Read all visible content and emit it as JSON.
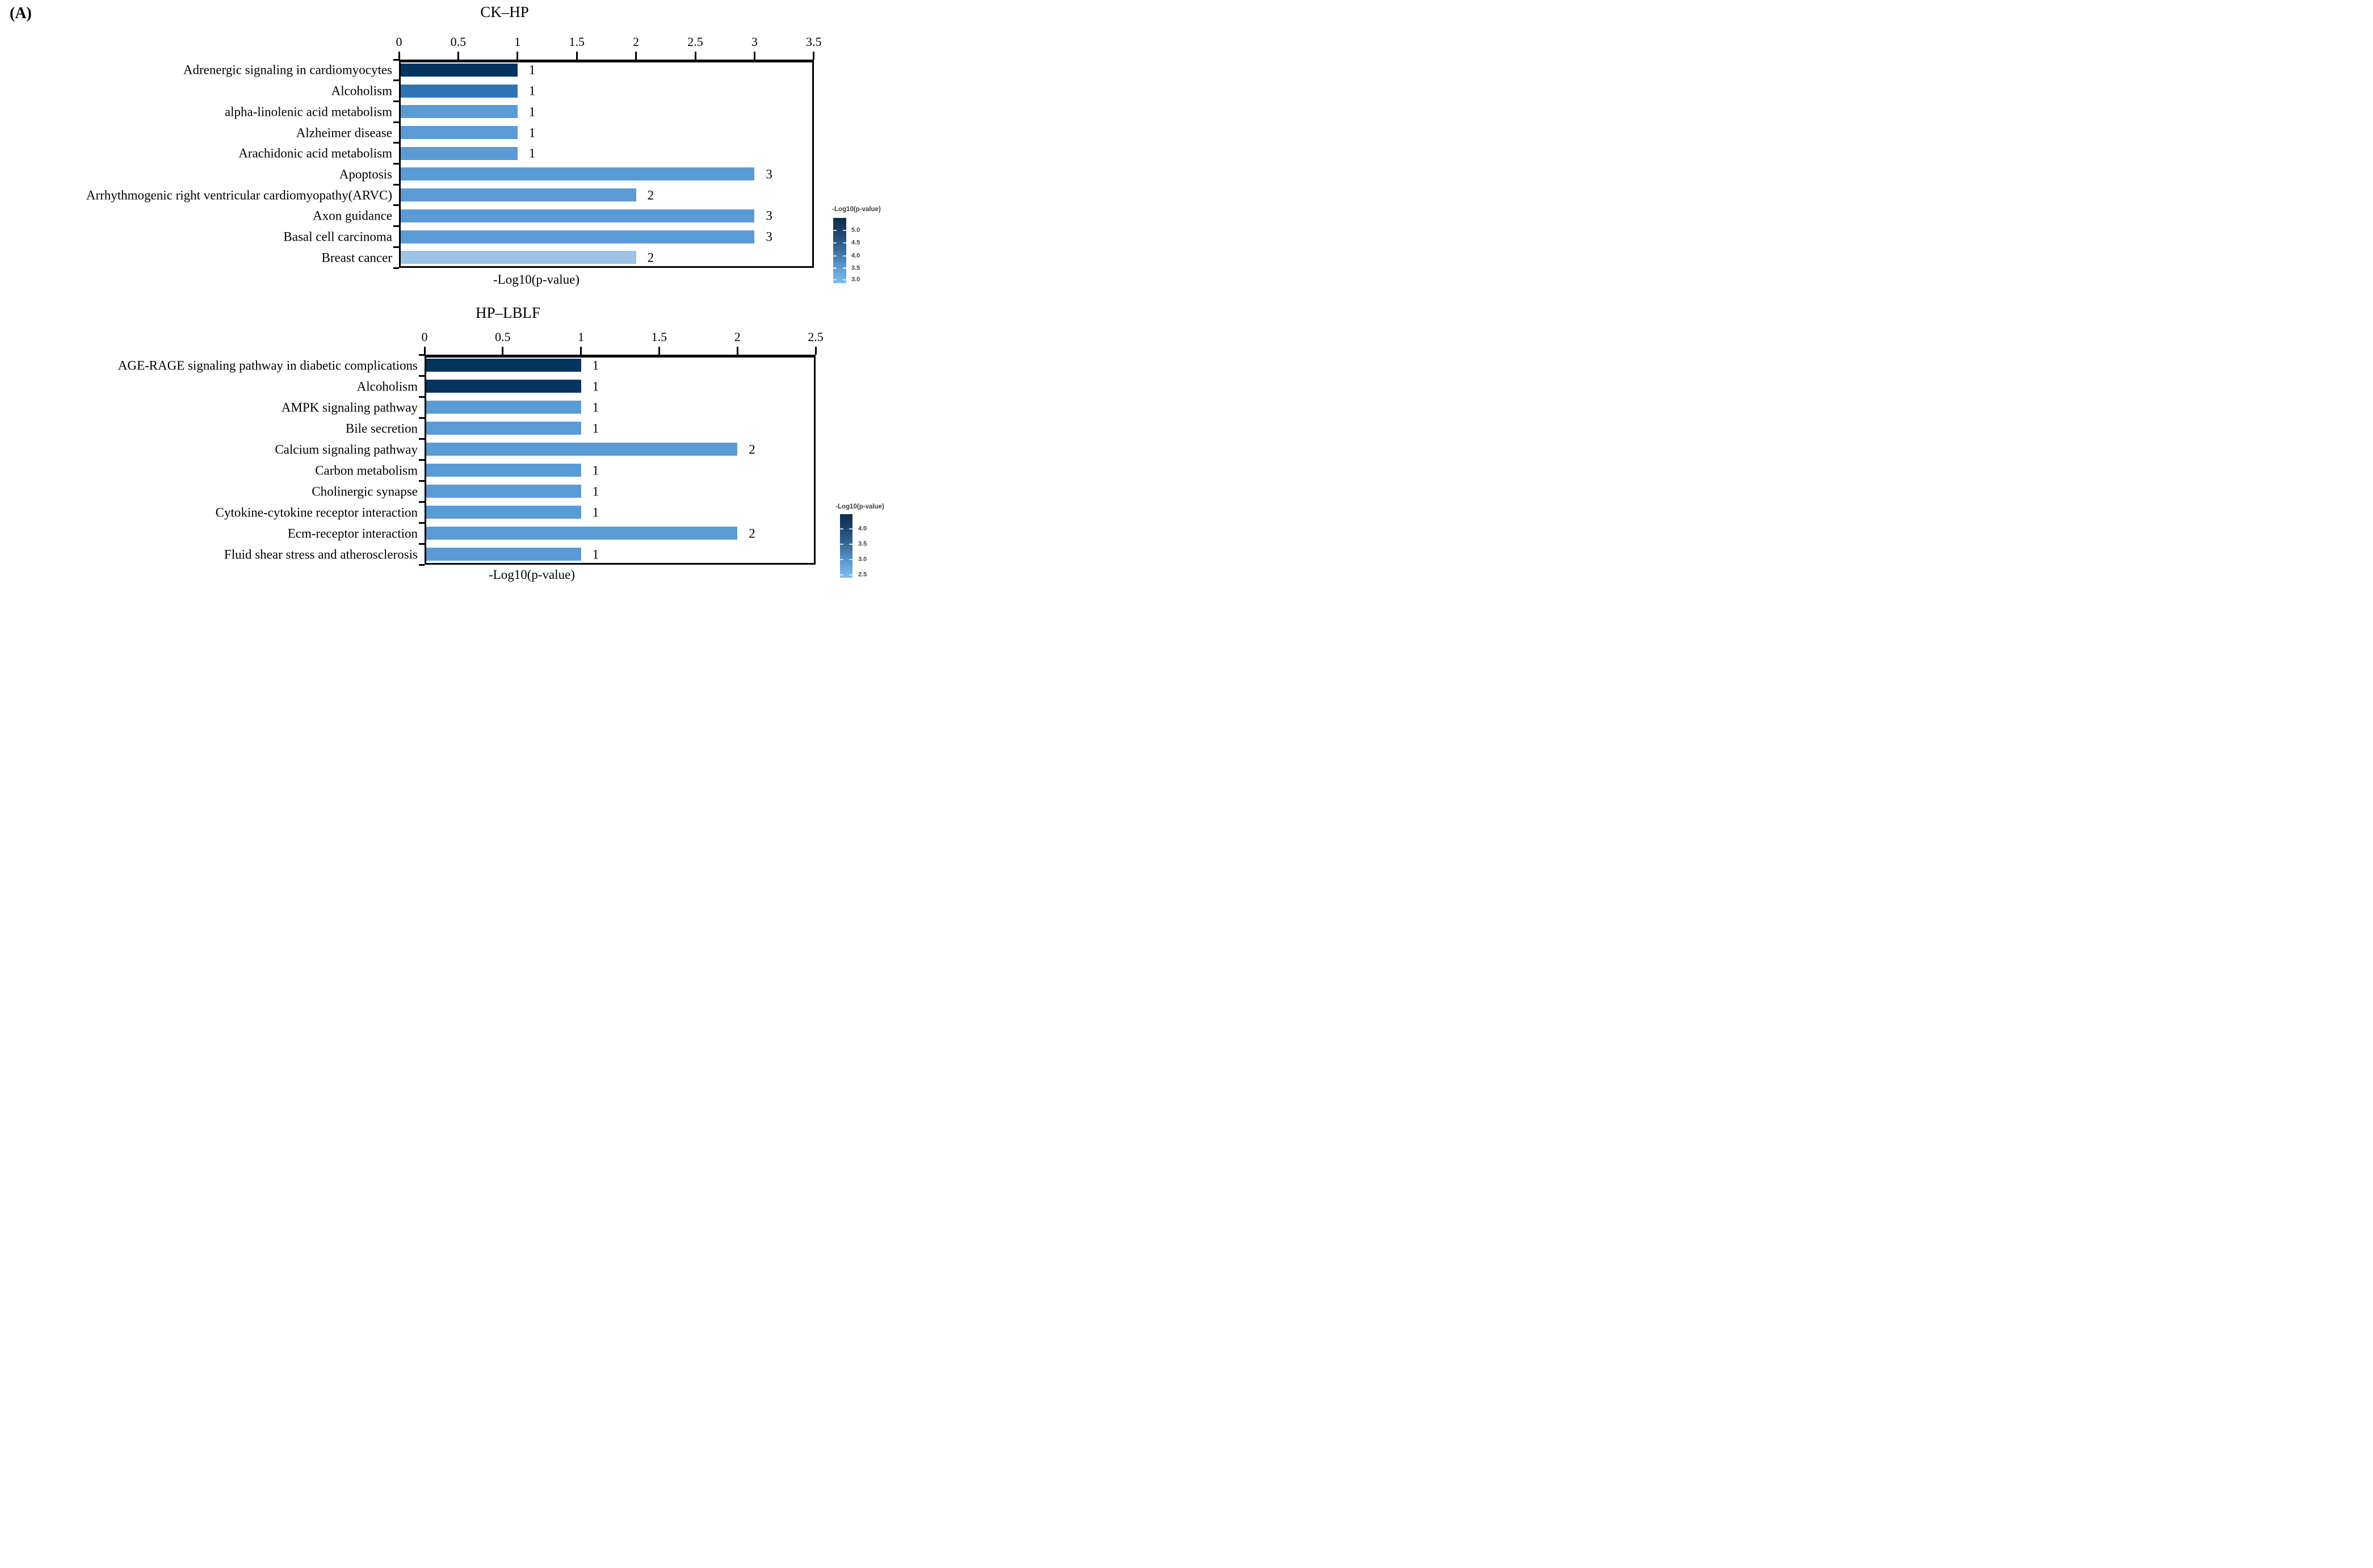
{
  "panel_label": "(A)",
  "chart_data": [
    {
      "type": "bar",
      "orientation": "horizontal",
      "title": "CK–HP",
      "xlabel": "-Log10(p-value)",
      "xlim": [
        0,
        3.5
      ],
      "x_ticks": [
        "0",
        "0.5",
        "1",
        "1.5",
        "2",
        "2.5",
        "3",
        "3.5"
      ],
      "grid": "off",
      "categories": [
        "Adrenergic signaling in cardiomyocytes",
        "Alcoholism",
        "alpha-linolenic acid metabolism",
        "Alzheimer disease",
        "Arachidonic acid metabolism",
        "Apoptosis",
        "Arrhythmogenic right ventricular cardiomyopathy(ARVC)",
        "Axon guidance",
        "Basal cell carcinoma",
        "Breast cancer"
      ],
      "values": [
        1,
        1,
        1,
        1,
        1,
        3,
        2,
        3,
        3,
        2
      ],
      "bar_labels": [
        "1",
        "1",
        "1",
        "1",
        "1",
        "3",
        "2",
        "3",
        "3",
        "2"
      ],
      "bar_colors": [
        "#03335f",
        "#2e74b5",
        "#5b9bd5",
        "#5b9bd5",
        "#5b9bd5",
        "#5b9bd5",
        "#5b9bd5",
        "#5b9bd5",
        "#5b9bd5",
        "#9dc3e6"
      ],
      "legend": {
        "title": "-Log10(p-value)",
        "tick_labels": [
          "5.0",
          "4.5",
          "4.0",
          "3.5",
          "3.0"
        ],
        "gradient_top": "#0e2c49",
        "gradient_bottom": "#7cbbf0",
        "position": "right"
      }
    },
    {
      "type": "bar",
      "orientation": "horizontal",
      "title": "HP–LBLF",
      "xlabel": "-Log10(p-value)",
      "xlim": [
        0,
        2.5
      ],
      "x_ticks": [
        "0",
        "0.5",
        "1",
        "1.5",
        "2",
        "2.5"
      ],
      "grid": "off",
      "categories": [
        "AGE-RAGE signaling pathway in diabetic complications",
        "Alcoholism",
        "AMPK signaling pathway",
        "Bile secretion",
        "Calcium signaling pathway",
        "Carbon metabolism",
        "Cholinergic synapse",
        "Cytokine-cytokine receptor interaction",
        "Ecm-receptor interaction",
        "Fluid shear stress and atherosclerosis"
      ],
      "values": [
        1,
        1,
        1,
        1,
        2,
        1,
        1,
        1,
        2,
        1
      ],
      "bar_labels": [
        "1",
        "1",
        "1",
        "1",
        "2",
        "1",
        "1",
        "1",
        "2",
        "1"
      ],
      "bar_colors": [
        "#03335f",
        "#05355f",
        "#5b9bd5",
        "#5b9bd5",
        "#5b9bd5",
        "#5b9bd5",
        "#5b9bd5",
        "#5b9bd5",
        "#5b9bd5",
        "#5b9bd5"
      ],
      "legend": {
        "title": "-Log10(p-value)",
        "tick_labels": [
          "4.0",
          "3.5",
          "3.0",
          "2.5"
        ],
        "gradient_top": "#0e2c49",
        "gradient_bottom": "#7cbbf0",
        "position": "right"
      }
    }
  ]
}
